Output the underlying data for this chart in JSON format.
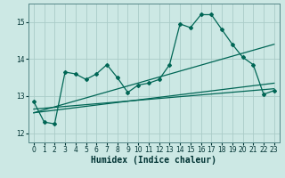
{
  "xlabel": "Humidex (Indice chaleur)",
  "background_color": "#cce8e4",
  "grid_color": "#aaccc8",
  "line_color": "#006655",
  "xlim": [
    -0.5,
    23.5
  ],
  "ylim": [
    11.75,
    15.5
  ],
  "yticks": [
    12,
    13,
    14,
    15
  ],
  "xticks": [
    0,
    1,
    2,
    3,
    4,
    5,
    6,
    7,
    8,
    9,
    10,
    11,
    12,
    13,
    14,
    15,
    16,
    17,
    18,
    19,
    20,
    21,
    22,
    23
  ],
  "series1_x": [
    0,
    1,
    2,
    3,
    4,
    5,
    6,
    7,
    8,
    9,
    10,
    11,
    12,
    13,
    14,
    15,
    16,
    17,
    18,
    19,
    20,
    21,
    22,
    23
  ],
  "series1_y": [
    12.85,
    12.3,
    12.25,
    13.65,
    13.6,
    13.45,
    13.6,
    13.85,
    13.5,
    13.1,
    13.3,
    13.35,
    13.45,
    13.85,
    14.95,
    14.85,
    15.2,
    15.2,
    14.8,
    14.4,
    14.05,
    13.85,
    13.05,
    13.15
  ],
  "trend1_x": [
    0,
    23
  ],
  "trend1_y": [
    12.55,
    14.4
  ],
  "trend2_x": [
    0,
    23
  ],
  "trend2_y": [
    12.55,
    13.35
  ],
  "trend3_x": [
    0,
    23
  ],
  "trend3_y": [
    12.65,
    13.2
  ],
  "marker": "D",
  "markersize": 2.0,
  "linewidth": 0.9,
  "xlabel_fontsize": 7,
  "tick_fontsize": 5.5
}
